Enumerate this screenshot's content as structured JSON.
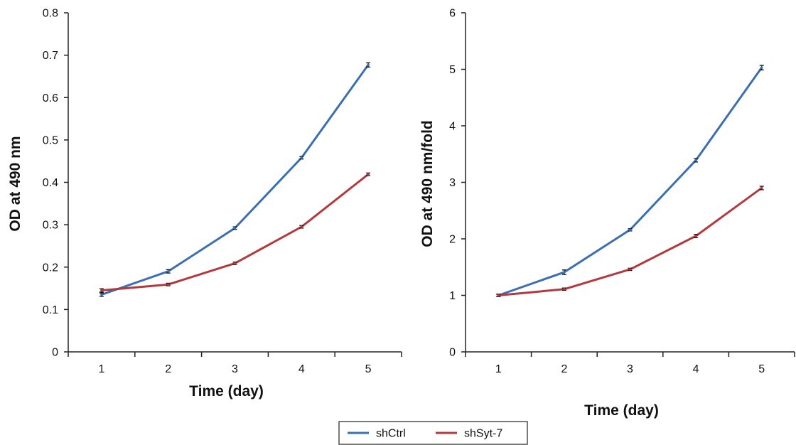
{
  "chart_data": [
    {
      "type": "line",
      "ylabel": "OD at 490 nm",
      "xlabel": "Time (day)",
      "x": [
        1,
        2,
        3,
        4,
        5
      ],
      "ylim": [
        0,
        0.8
      ],
      "yticks": [
        0,
        0.1,
        0.2,
        0.3,
        0.4,
        0.5,
        0.6,
        0.7,
        0.8
      ],
      "ytick_labels": [
        "0",
        "0.1",
        "0.2",
        "0.3",
        "0.4",
        "0.5",
        "0.6",
        "0.7",
        "0.8"
      ],
      "series": [
        {
          "name": "shCtrl",
          "color": "#3B6FB0",
          "values": [
            0.135,
            0.19,
            0.292,
            0.458,
            0.677
          ],
          "errors": [
            0.004,
            0.004,
            0.003,
            0.003,
            0.005
          ]
        },
        {
          "name": "shSyt-7",
          "color": "#B23A3E",
          "values": [
            0.145,
            0.159,
            0.209,
            0.295,
            0.419
          ],
          "errors": [
            0.004,
            0.003,
            0.003,
            0.003,
            0.003
          ]
        }
      ]
    },
    {
      "type": "line",
      "ylabel": "OD at 490 nm/fold",
      "xlabel": "Time (day)",
      "x": [
        1,
        2,
        3,
        4,
        5
      ],
      "ylim": [
        0,
        6
      ],
      "yticks": [
        0,
        1,
        2,
        3,
        4,
        5,
        6
      ],
      "ytick_labels": [
        "0",
        "1",
        "2",
        "3",
        "4",
        "5",
        "6"
      ],
      "series": [
        {
          "name": "shCtrl",
          "color": "#3B6FB0",
          "values": [
            1.0,
            1.41,
            2.16,
            3.39,
            5.03
          ],
          "errors": [
            0.02,
            0.04,
            0.02,
            0.03,
            0.04
          ]
        },
        {
          "name": "shSyt-7",
          "color": "#B23A3E",
          "values": [
            1.0,
            1.11,
            1.46,
            2.05,
            2.9
          ],
          "errors": [
            0.02,
            0.02,
            0.02,
            0.03,
            0.03
          ]
        }
      ]
    }
  ],
  "legend": {
    "placement": "bottom-center",
    "items": [
      {
        "label": "shCtrl",
        "color": "#3B6FB0"
      },
      {
        "label": "shSyt-7",
        "color": "#B23A3E"
      }
    ]
  }
}
